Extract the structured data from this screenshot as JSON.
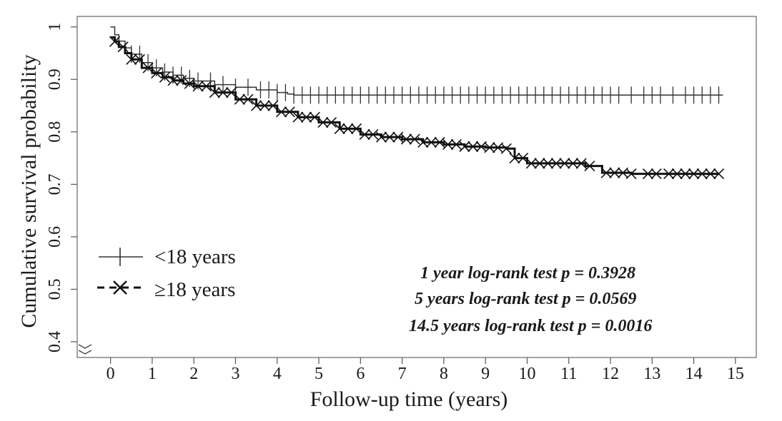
{
  "chart_data": {
    "type": "line",
    "subtype": "kaplan-meier",
    "title": "",
    "xlabel": "Follow-up time (years)",
    "ylabel": "Cumulative survival probability",
    "xlim": [
      -0.8,
      15.5
    ],
    "ylim": [
      0.37,
      1.02
    ],
    "xticks": [
      0,
      1,
      2,
      3,
      4,
      5,
      6,
      7,
      8,
      9,
      10,
      11,
      12,
      13,
      14,
      15
    ],
    "xtick_labels": [
      "0",
      "1",
      "2",
      "3",
      "4",
      "5",
      "6",
      "7",
      "8",
      "9",
      "10",
      "11",
      "12",
      "13",
      "14",
      "15"
    ],
    "yticks": [
      0.4,
      0.5,
      0.6,
      0.7,
      0.8,
      0.9,
      1.0
    ],
    "ytick_labels": [
      "0.4",
      "0.5",
      "0.6",
      "0.7",
      "0.8",
      "0.9",
      "1"
    ],
    "y_axis_break": true,
    "grid": false,
    "legend_position": "left",
    "series": [
      {
        "name": "<18 years",
        "line_style": "solid",
        "censor_marker": "plus",
        "color": "#333333",
        "x": [
          0,
          0.1,
          0.2,
          0.35,
          0.5,
          0.75,
          1.0,
          1.25,
          1.5,
          1.75,
          2.0,
          2.5,
          3.0,
          3.5,
          4.0,
          4.25,
          4.4,
          14.7
        ],
        "y": [
          1.0,
          0.985,
          0.973,
          0.96,
          0.948,
          0.932,
          0.922,
          0.914,
          0.908,
          0.902,
          0.897,
          0.89,
          0.885,
          0.88,
          0.875,
          0.872,
          0.87,
          0.87
        ],
        "censored_x": [
          0.5,
          0.7,
          0.9,
          1.1,
          1.3,
          1.5,
          1.7,
          1.9,
          2.1,
          2.4,
          2.7,
          3.0,
          3.3,
          3.6,
          3.8,
          4.0,
          4.2,
          4.4,
          4.6,
          4.8,
          5.0,
          5.2,
          5.4,
          5.6,
          5.8,
          6.0,
          6.2,
          6.4,
          6.6,
          6.8,
          7.0,
          7.2,
          7.4,
          7.6,
          7.8,
          8.0,
          8.2,
          8.4,
          8.6,
          8.8,
          9.0,
          9.2,
          9.4,
          9.6,
          9.8,
          10.0,
          10.2,
          10.4,
          10.6,
          10.8,
          11.0,
          11.2,
          11.4,
          11.6,
          11.8,
          12.0,
          12.2,
          12.5,
          12.8,
          13.0,
          13.2,
          13.5,
          13.8,
          14.0,
          14.2,
          14.4,
          14.6
        ]
      },
      {
        "name": "≥18 years",
        "line_style": "dashed",
        "censor_marker": "x",
        "color": "#111111",
        "x": [
          0,
          0.1,
          0.2,
          0.35,
          0.5,
          0.75,
          1.0,
          1.25,
          1.5,
          1.75,
          2.0,
          2.5,
          3.0,
          3.5,
          4.0,
          4.5,
          5.0,
          5.5,
          6.0,
          6.5,
          7.0,
          7.5,
          8.0,
          8.5,
          9.0,
          9.5,
          9.7,
          10.0,
          10.5,
          11.0,
          11.4,
          11.8,
          12.5,
          13.5,
          14.6
        ],
        "y": [
          0.98,
          0.972,
          0.962,
          0.95,
          0.938,
          0.922,
          0.912,
          0.904,
          0.898,
          0.892,
          0.887,
          0.875,
          0.862,
          0.85,
          0.838,
          0.828,
          0.818,
          0.806,
          0.795,
          0.79,
          0.786,
          0.78,
          0.776,
          0.772,
          0.77,
          0.768,
          0.75,
          0.74,
          0.74,
          0.74,
          0.735,
          0.722,
          0.72,
          0.72,
          0.72
        ],
        "censored_x": [
          0.1,
          0.3,
          0.5,
          0.7,
          0.9,
          1.1,
          1.3,
          1.5,
          1.7,
          1.9,
          2.1,
          2.3,
          2.5,
          2.7,
          2.9,
          3.1,
          3.3,
          3.5,
          3.7,
          3.9,
          4.1,
          4.3,
          4.5,
          4.7,
          4.9,
          5.1,
          5.3,
          5.5,
          5.7,
          5.9,
          6.1,
          6.3,
          6.5,
          6.7,
          6.9,
          7.1,
          7.3,
          7.5,
          7.7,
          7.9,
          8.1,
          8.3,
          8.5,
          8.7,
          8.9,
          9.1,
          9.3,
          9.5,
          9.7,
          9.9,
          10.1,
          10.3,
          10.5,
          10.7,
          10.9,
          11.1,
          11.3,
          11.5,
          11.9,
          12.1,
          12.3,
          12.5,
          12.9,
          13.1,
          13.4,
          13.6,
          13.8,
          14.0,
          14.2,
          14.4,
          14.6
        ]
      }
    ],
    "annotations": [
      "1 year log-rank test p = 0.3928",
      "5 years log-rank test p = 0.0569",
      "14.5 years log-rank test p = 0.0016"
    ]
  }
}
